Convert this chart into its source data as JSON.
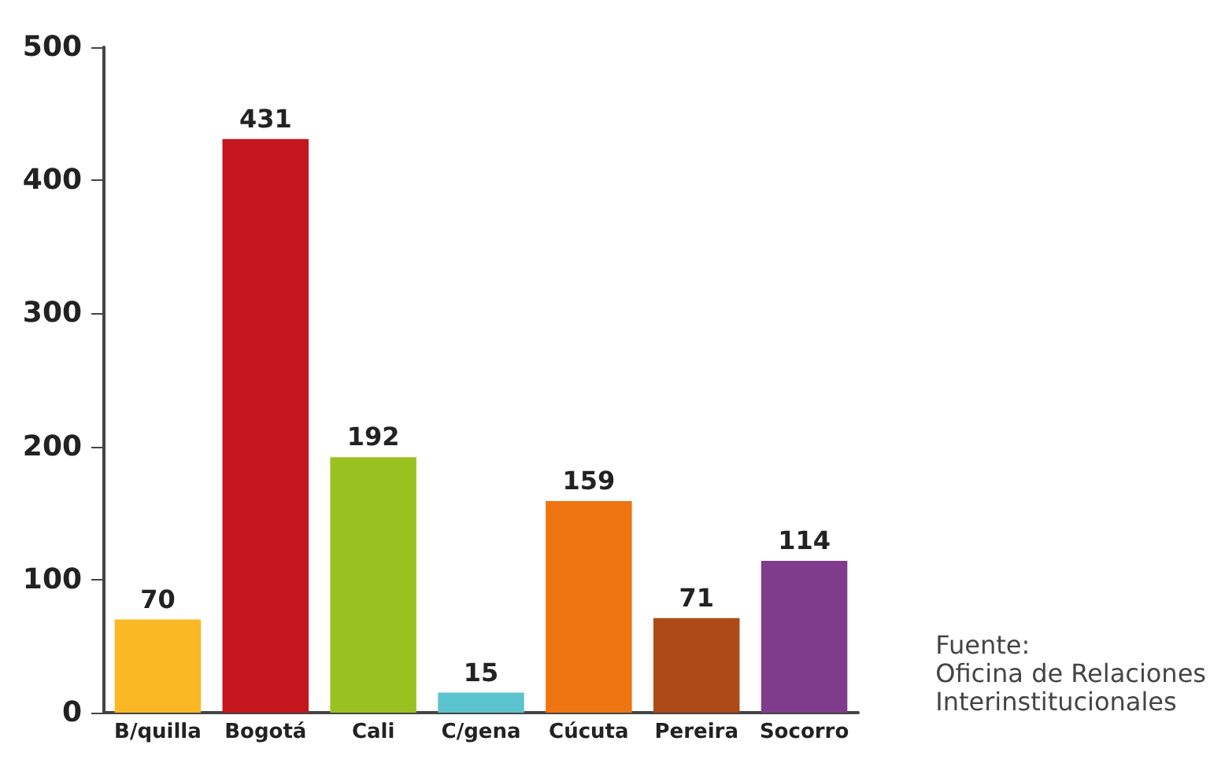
{
  "chart_data": {
    "type": "bar",
    "categories": [
      "B/quilla",
      "Bogotá",
      "Cali",
      "C/gena",
      "Cúcuta",
      "Pereira",
      "Socorro"
    ],
    "values": [
      70,
      431,
      192,
      15,
      159,
      71,
      114
    ],
    "colors": [
      "#f9b824",
      "#c4161c",
      "#99c221",
      "#5bc4cf",
      "#ee7512",
      "#ad4a17",
      "#7f3c8d"
    ],
    "ylim": [
      0,
      500
    ],
    "yticks": [
      0,
      100,
      200,
      300,
      400,
      500
    ],
    "grid": false,
    "data_labels": true,
    "annotations": [
      "Fuente:\nOficina de Relaciones\nInterinstitucionales"
    ]
  }
}
